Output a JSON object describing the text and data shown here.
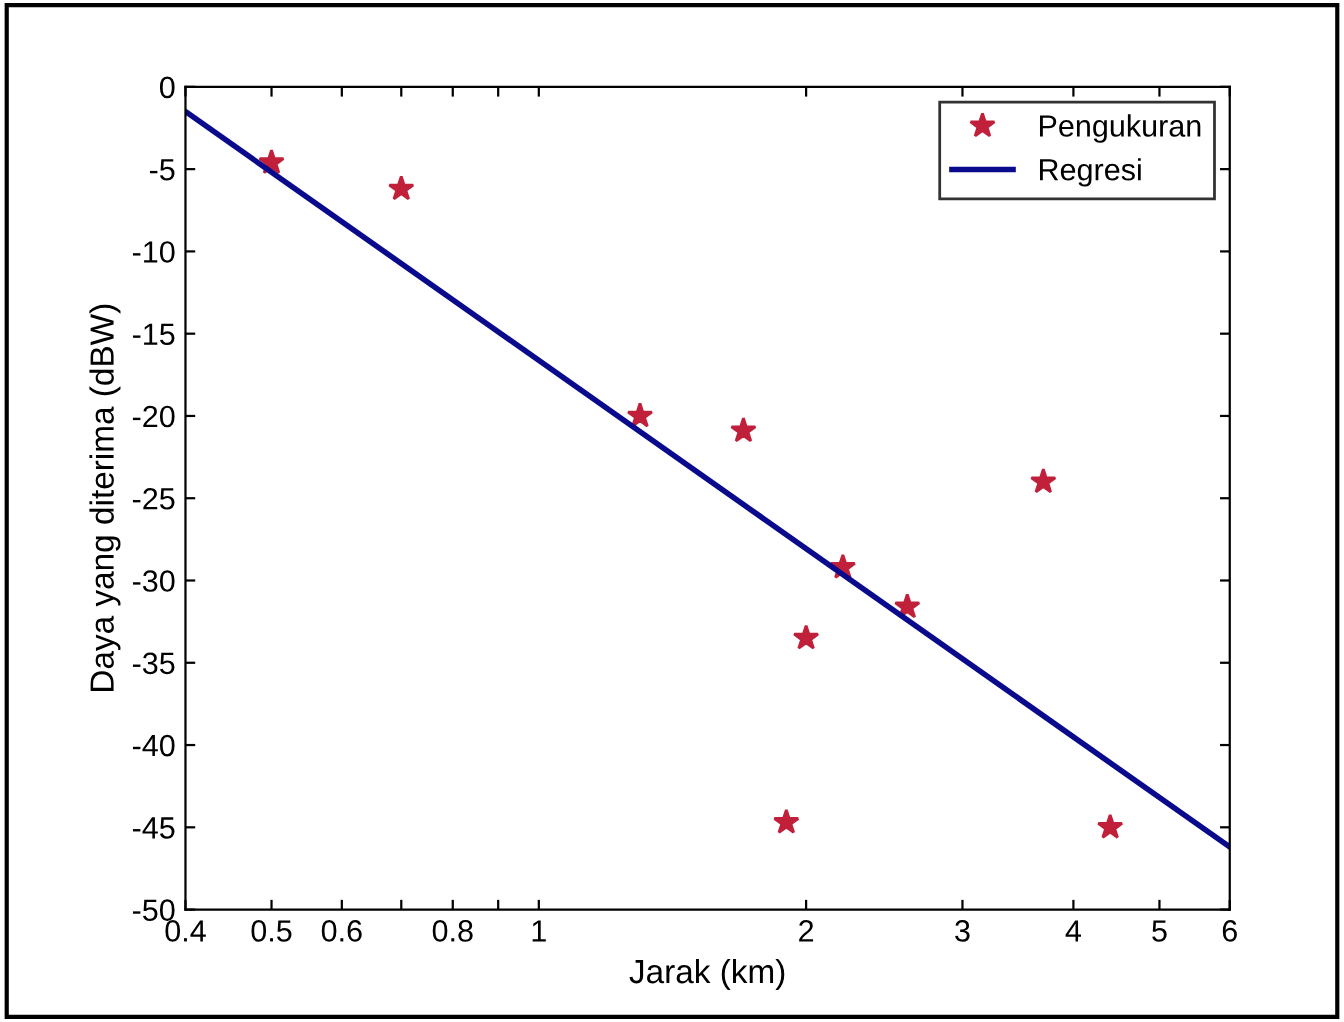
{
  "chart_data": {
    "type": "scatter",
    "xlabel": "Jarak (km)",
    "ylabel": "Daya yang diterima (dBW)",
    "log": "x",
    "xlim": [
      0.4,
      6
    ],
    "xticks": [
      0.4,
      0.5,
      0.6,
      {
        "value": 0.7,
        "label": null
      },
      0.8,
      {
        "value": 0.9,
        "label": null
      },
      1,
      2,
      3,
      4,
      5,
      6
    ],
    "ylim": [
      -50,
      0
    ],
    "yticks": [
      -50,
      -45,
      -40,
      -35,
      -30,
      -25,
      -20,
      -15,
      -10,
      -5,
      0
    ],
    "grid": false,
    "legend": "top right",
    "series": [
      {
        "name": "Pengukuran",
        "marker": "star",
        "color": "#c0203a",
        "x": [
          0.5,
          0.7,
          1.3,
          1.7,
          1.9,
          2.0,
          2.2,
          2.6,
          3.7,
          4.4
        ],
        "values": [
          -4.6,
          -6.2,
          -20,
          -20.9,
          -44.7,
          -33.5,
          -29.2,
          -31.6,
          -24,
          -45
        ]
      },
      {
        "name": "Regresi",
        "type": "line",
        "marker": "none",
        "line_style": "solid",
        "color": "#0a0a8c",
        "x": [
          0.4,
          6
        ],
        "values": [
          -1.5,
          -46.2
        ]
      }
    ]
  }
}
